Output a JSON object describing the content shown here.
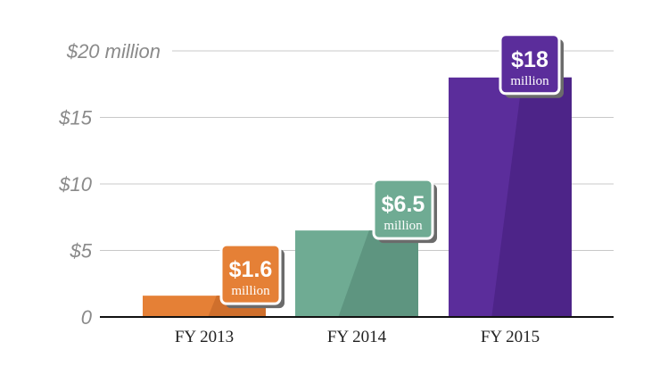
{
  "chart_data": {
    "type": "bar",
    "categories": [
      "FY 2013",
      "FY 2014",
      "FY 2015"
    ],
    "values": [
      1.6,
      6.5,
      18
    ],
    "colors": [
      "#e58036",
      "#6fab93",
      "#5b2d9b"
    ],
    "shade_colors": [
      "#cf6f2c",
      "#5e9580",
      "#4d2488"
    ],
    "badges": [
      {
        "value": "$1.6",
        "unit": "million"
      },
      {
        "value": "$6.5",
        "unit": "million"
      },
      {
        "value": "$18",
        "unit": "million"
      }
    ],
    "y_ticks": [
      {
        "value": 0,
        "label": "0"
      },
      {
        "value": 5,
        "label": "$5"
      },
      {
        "value": 10,
        "label": "$10"
      },
      {
        "value": 15,
        "label": "$15"
      },
      {
        "value": 20,
        "label": "$20 million"
      }
    ],
    "ylim": [
      0,
      20
    ],
    "grid": true,
    "title": "",
    "xlabel": "",
    "ylabel": ""
  }
}
